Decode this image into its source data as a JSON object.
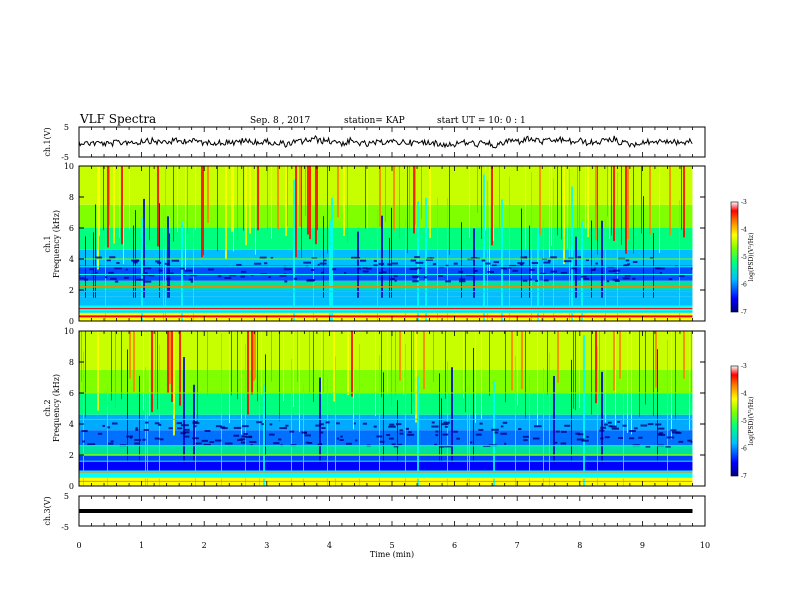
{
  "header": {
    "title": "VLF Spectra",
    "date": "Sep. 8 , 2017",
    "station": "station= KAP",
    "start": "start  UT =   10: 0  : 1"
  },
  "chart_data": {
    "type": "heatmap",
    "x_axis": {
      "label": "Time  (min)",
      "range": [
        0,
        10
      ],
      "ticks": [
        "0",
        "1",
        "2",
        "3",
        "4",
        "5",
        "6",
        "7",
        "8",
        "9",
        "10"
      ]
    },
    "panels": [
      {
        "name": "ch.1(V)",
        "kind": "waveform",
        "ylim": [
          -5,
          5
        ],
        "yticks": [
          "5",
          "-5"
        ]
      },
      {
        "name": "ch.1 spectrogram",
        "kind": "spectrogram",
        "ylabel_top": "ch.1",
        "ylabel": "Frequency  (kHz)",
        "ylim": [
          0,
          10
        ],
        "yticks": [
          "0",
          "2",
          "4",
          "6",
          "8",
          "10"
        ],
        "colorbar": {
          "label": "log(PSD)(V²/Hz)",
          "range": [
            -7,
            -3
          ],
          "ticks": [
            "-3",
            "-4",
            "-5",
            "-6",
            "-7"
          ]
        }
      },
      {
        "name": "ch.2 spectrogram",
        "kind": "spectrogram",
        "ylabel_top": "ch.2",
        "ylabel": "Frequency  (kHz)",
        "ylim": [
          0,
          10
        ],
        "yticks": [
          "0",
          "2",
          "4",
          "6",
          "8",
          "10"
        ],
        "colorbar": {
          "label": "log(PSD)(V²/Hz)",
          "range": [
            -7,
            -3
          ],
          "ticks": [
            "-3",
            "-4",
            "-5",
            "-6",
            "-7"
          ]
        }
      },
      {
        "name": "ch.3(V)",
        "kind": "waveform",
        "ylim": [
          -5,
          5
        ],
        "yticks": [
          "5",
          "-5"
        ],
        "approx_level": 0
      }
    ],
    "data_end_min": 9.8,
    "colormap": [
      "#000080",
      "#0000ff",
      "#00bfff",
      "#00ff7f",
      "#7fff00",
      "#ffff00",
      "#ff8000",
      "#ff0000",
      "#ffffff"
    ]
  }
}
